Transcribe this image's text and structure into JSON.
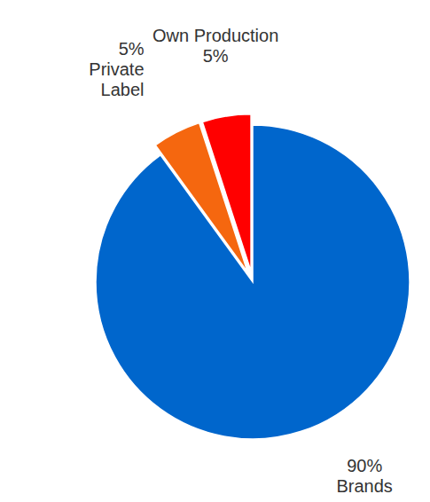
{
  "chart_data": {
    "type": "pie",
    "categories": [
      "Brands",
      "Private Label",
      "Own Production"
    ],
    "values": [
      90,
      5,
      5
    ],
    "value_labels": [
      "90%",
      "5%",
      "5%"
    ],
    "colors": [
      "#0066cc",
      "#f5670f",
      "#ff0000"
    ],
    "data_labels": true
  }
}
